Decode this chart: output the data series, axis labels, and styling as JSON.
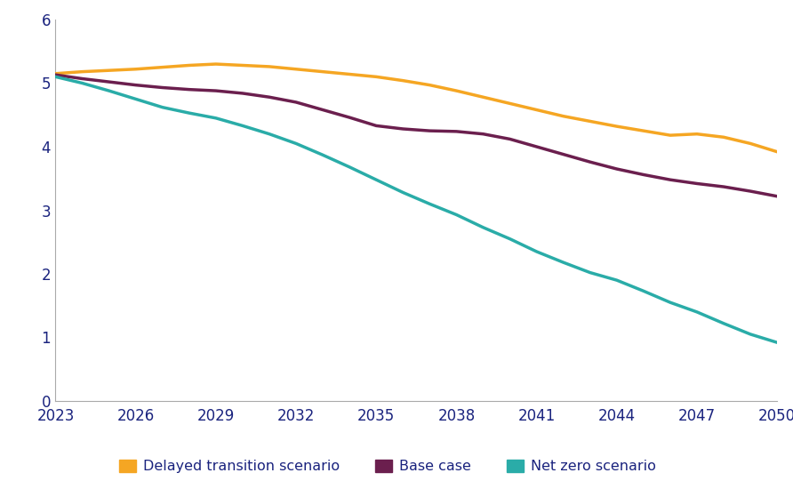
{
  "years": [
    2023,
    2024,
    2025,
    2026,
    2027,
    2028,
    2029,
    2030,
    2031,
    2032,
    2033,
    2034,
    2035,
    2036,
    2037,
    2038,
    2039,
    2040,
    2041,
    2042,
    2043,
    2044,
    2045,
    2046,
    2047,
    2048,
    2049,
    2050
  ],
  "delayed_transition": [
    5.15,
    5.18,
    5.2,
    5.22,
    5.25,
    5.28,
    5.3,
    5.28,
    5.26,
    5.22,
    5.18,
    5.14,
    5.1,
    5.04,
    4.97,
    4.88,
    4.78,
    4.68,
    4.58,
    4.48,
    4.4,
    4.32,
    4.25,
    4.18,
    4.2,
    4.15,
    4.05,
    3.92
  ],
  "base_case": [
    5.13,
    5.07,
    5.02,
    4.97,
    4.93,
    4.9,
    4.88,
    4.84,
    4.78,
    4.7,
    4.58,
    4.46,
    4.33,
    4.28,
    4.25,
    4.24,
    4.2,
    4.12,
    4.0,
    3.88,
    3.76,
    3.65,
    3.56,
    3.48,
    3.42,
    3.37,
    3.3,
    3.22
  ],
  "net_zero": [
    5.1,
    5.0,
    4.88,
    4.75,
    4.62,
    4.53,
    4.45,
    4.33,
    4.2,
    4.05,
    3.87,
    3.68,
    3.48,
    3.28,
    3.1,
    2.93,
    2.73,
    2.55,
    2.35,
    2.18,
    2.02,
    1.9,
    1.73,
    1.55,
    1.4,
    1.22,
    1.05,
    0.92
  ],
  "delayed_color": "#F5A623",
  "base_color": "#6B1F4E",
  "netzero_color": "#2AACA8",
  "xlim": [
    2023,
    2050
  ],
  "ylim": [
    0,
    6
  ],
  "yticks": [
    0,
    1,
    2,
    3,
    4,
    5,
    6
  ],
  "xticks": [
    2023,
    2026,
    2029,
    2032,
    2035,
    2038,
    2041,
    2044,
    2047,
    2050
  ],
  "legend_delayed": "Delayed transition scenario",
  "legend_base": "Base case",
  "legend_netzero": "Net zero scenario",
  "linewidth": 2.5,
  "background_color": "#ffffff",
  "tick_color": "#1a237e",
  "spine_color": "#aaaaaa"
}
